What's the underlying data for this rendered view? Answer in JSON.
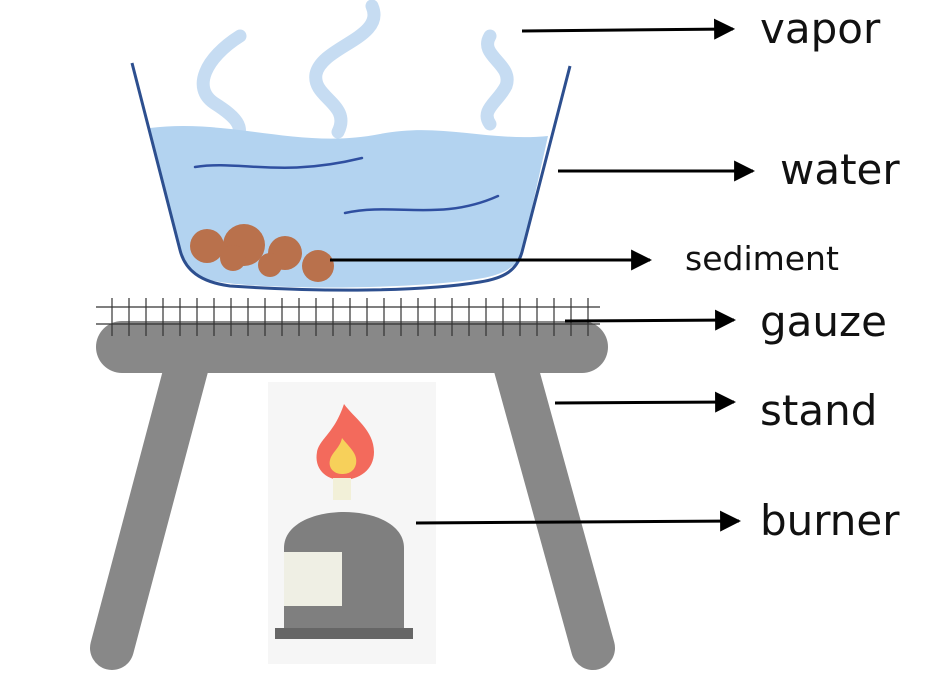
{
  "labels": {
    "vapor": "vapor",
    "water": "water",
    "sediment": "sediment",
    "gauze": "gauze",
    "stand": "stand",
    "burner": "burner"
  },
  "colors": {
    "water": "#b3d3f0",
    "basin_outline": "#2d4f8f",
    "wave_lines": "#2f4fa0",
    "vapor": "#c6dcf2",
    "sediment": "#b9714c",
    "stand": "#888888",
    "gauze_lines": "#333333",
    "flame_outer": "#f36a5c",
    "flame_inner": "#f7d05a",
    "burner_body": "#7f7f7f",
    "burner_panel": "#efefe4",
    "burner_base": "#666666",
    "arrows": "#000000"
  }
}
